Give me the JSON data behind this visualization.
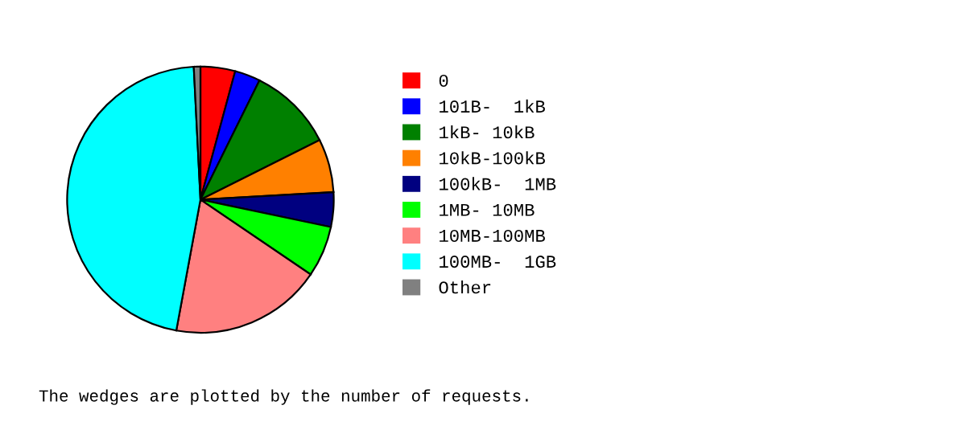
{
  "chart_data": {
    "type": "pie",
    "categories": [
      "0",
      "101B-  1kB",
      "1kB- 10kB",
      "10kB-100kB",
      "100kB-  1MB",
      "1MB- 10MB",
      "10MB-100MB",
      "100MB-  1GB",
      "Other"
    ],
    "values": [
      4.2,
      3.1,
      10.3,
      6.5,
      4.2,
      6.2,
      18.4,
      46.3,
      0.8
    ],
    "colors": [
      "#ff0000",
      "#0000ff",
      "#008000",
      "#ff8000",
      "#000080",
      "#00ff00",
      "#ff8080",
      "#00ffff",
      "#808080"
    ],
    "legend": "right",
    "annotations": [
      "The wedges are plotted by the number of requests."
    ]
  }
}
